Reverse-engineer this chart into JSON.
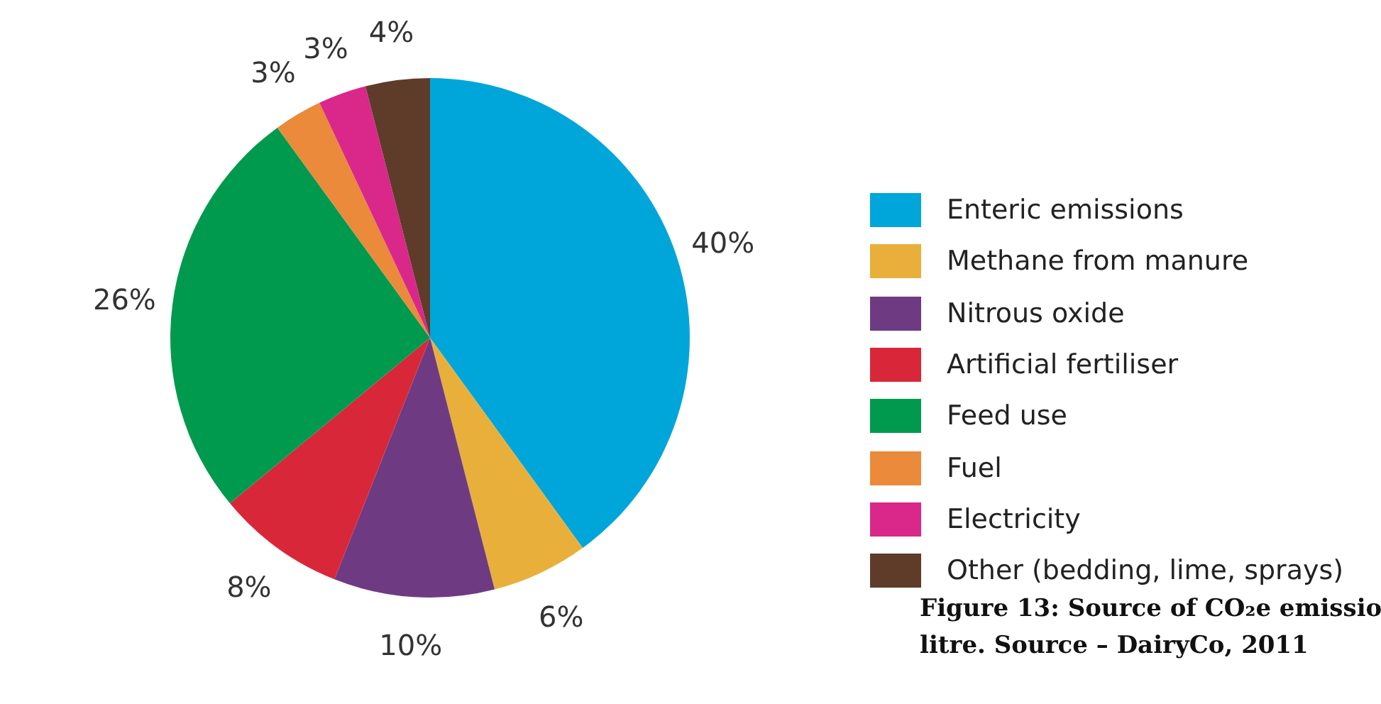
{
  "chart_data": {
    "type": "pie",
    "categories": [
      "Enteric emissions",
      "Methane from manure",
      "Nitrous oxide",
      "Artificial fertiliser",
      "Feed use",
      "Fuel",
      "Electricity",
      "Other (bedding, lime, sprays)"
    ],
    "values": [
      40,
      6,
      10,
      8,
      26,
      3,
      3,
      4
    ],
    "value_labels": [
      "40%",
      "6%",
      "10%",
      "8%",
      "26%",
      "3%",
      "3%",
      "4%"
    ],
    "colors": [
      "#00a6d9",
      "#e8b03a",
      "#6e3b83",
      "#d9273a",
      "#009a4e",
      "#ea8a3a",
      "#d9288a",
      "#5e3c29"
    ],
    "legend": "right",
    "annotations": [
      "Figure 13: Source of CO₂e emissio",
      "litre.  Source – DairyCo, 2011"
    ]
  }
}
